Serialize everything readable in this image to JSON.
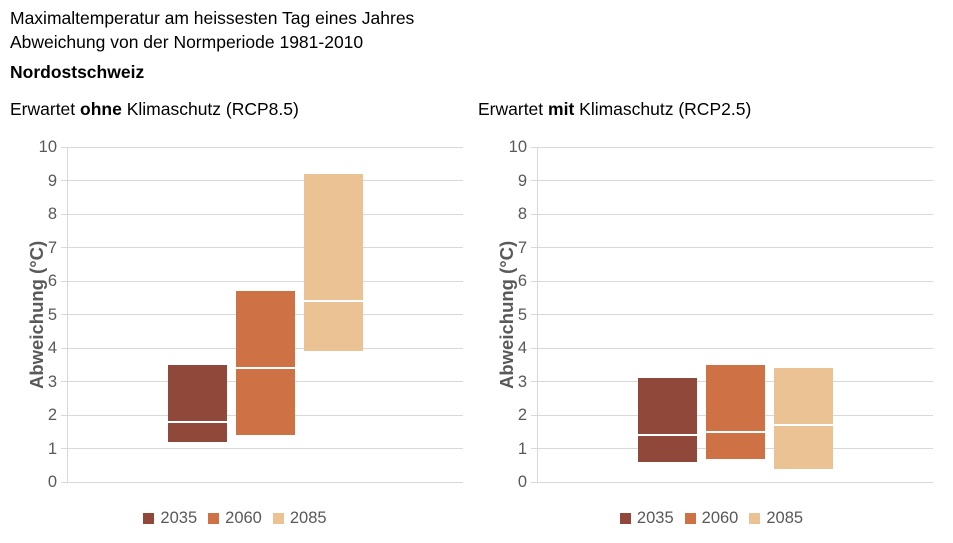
{
  "header": {
    "title_line1": "Maximaltemperatur am heissesten Tag eines Jahres",
    "title_line2": "Abweichung von der Normperiode 1981-2010",
    "region": "Nordostschweiz"
  },
  "colors": {
    "background": "#FFFFFF",
    "title_text": "#000000",
    "axis_text": "#595959",
    "gridline": "#D9D9D9",
    "median_line": "#FFFFFF",
    "bar_2035": "#8F4839",
    "bar_2060": "#CE7245",
    "bar_2085": "#EBC294"
  },
  "chart_data": [
    {
      "type": "bar",
      "variant": "floating-range-bars-with-median",
      "title_parts": [
        "Erwartet ",
        "ohne",
        " Klimaschutz (RCP8.5)"
      ],
      "ylabel": "Abweichung (°C)",
      "ylim": [
        0,
        10
      ],
      "ytick_step": 1,
      "grid": true,
      "legend_position": "bottom",
      "categories": [
        "2035",
        "2060",
        "2085"
      ],
      "series": [
        {
          "name": "2035",
          "low": 1.2,
          "median": 1.8,
          "high": 3.5,
          "color": "#8F4839"
        },
        {
          "name": "2060",
          "low": 1.4,
          "median": 3.4,
          "high": 5.7,
          "color": "#CE7245"
        },
        {
          "name": "2085",
          "low": 3.9,
          "median": 5.4,
          "high": 9.2,
          "color": "#EBC294"
        }
      ]
    },
    {
      "type": "bar",
      "variant": "floating-range-bars-with-median",
      "title_parts": [
        "Erwartet ",
        "mit",
        " Klimaschutz (RCP2.5)"
      ],
      "ylabel": "Abweichung (°C)",
      "ylim": [
        0,
        10
      ],
      "ytick_step": 1,
      "grid": true,
      "legend_position": "bottom",
      "categories": [
        "2035",
        "2060",
        "2085"
      ],
      "series": [
        {
          "name": "2035",
          "low": 0.6,
          "median": 1.4,
          "high": 3.1,
          "color": "#8F4839"
        },
        {
          "name": "2060",
          "low": 0.7,
          "median": 1.5,
          "high": 3.5,
          "color": "#CE7245"
        },
        {
          "name": "2085",
          "low": 0.4,
          "median": 1.7,
          "high": 3.4,
          "color": "#EBC294"
        }
      ]
    }
  ]
}
